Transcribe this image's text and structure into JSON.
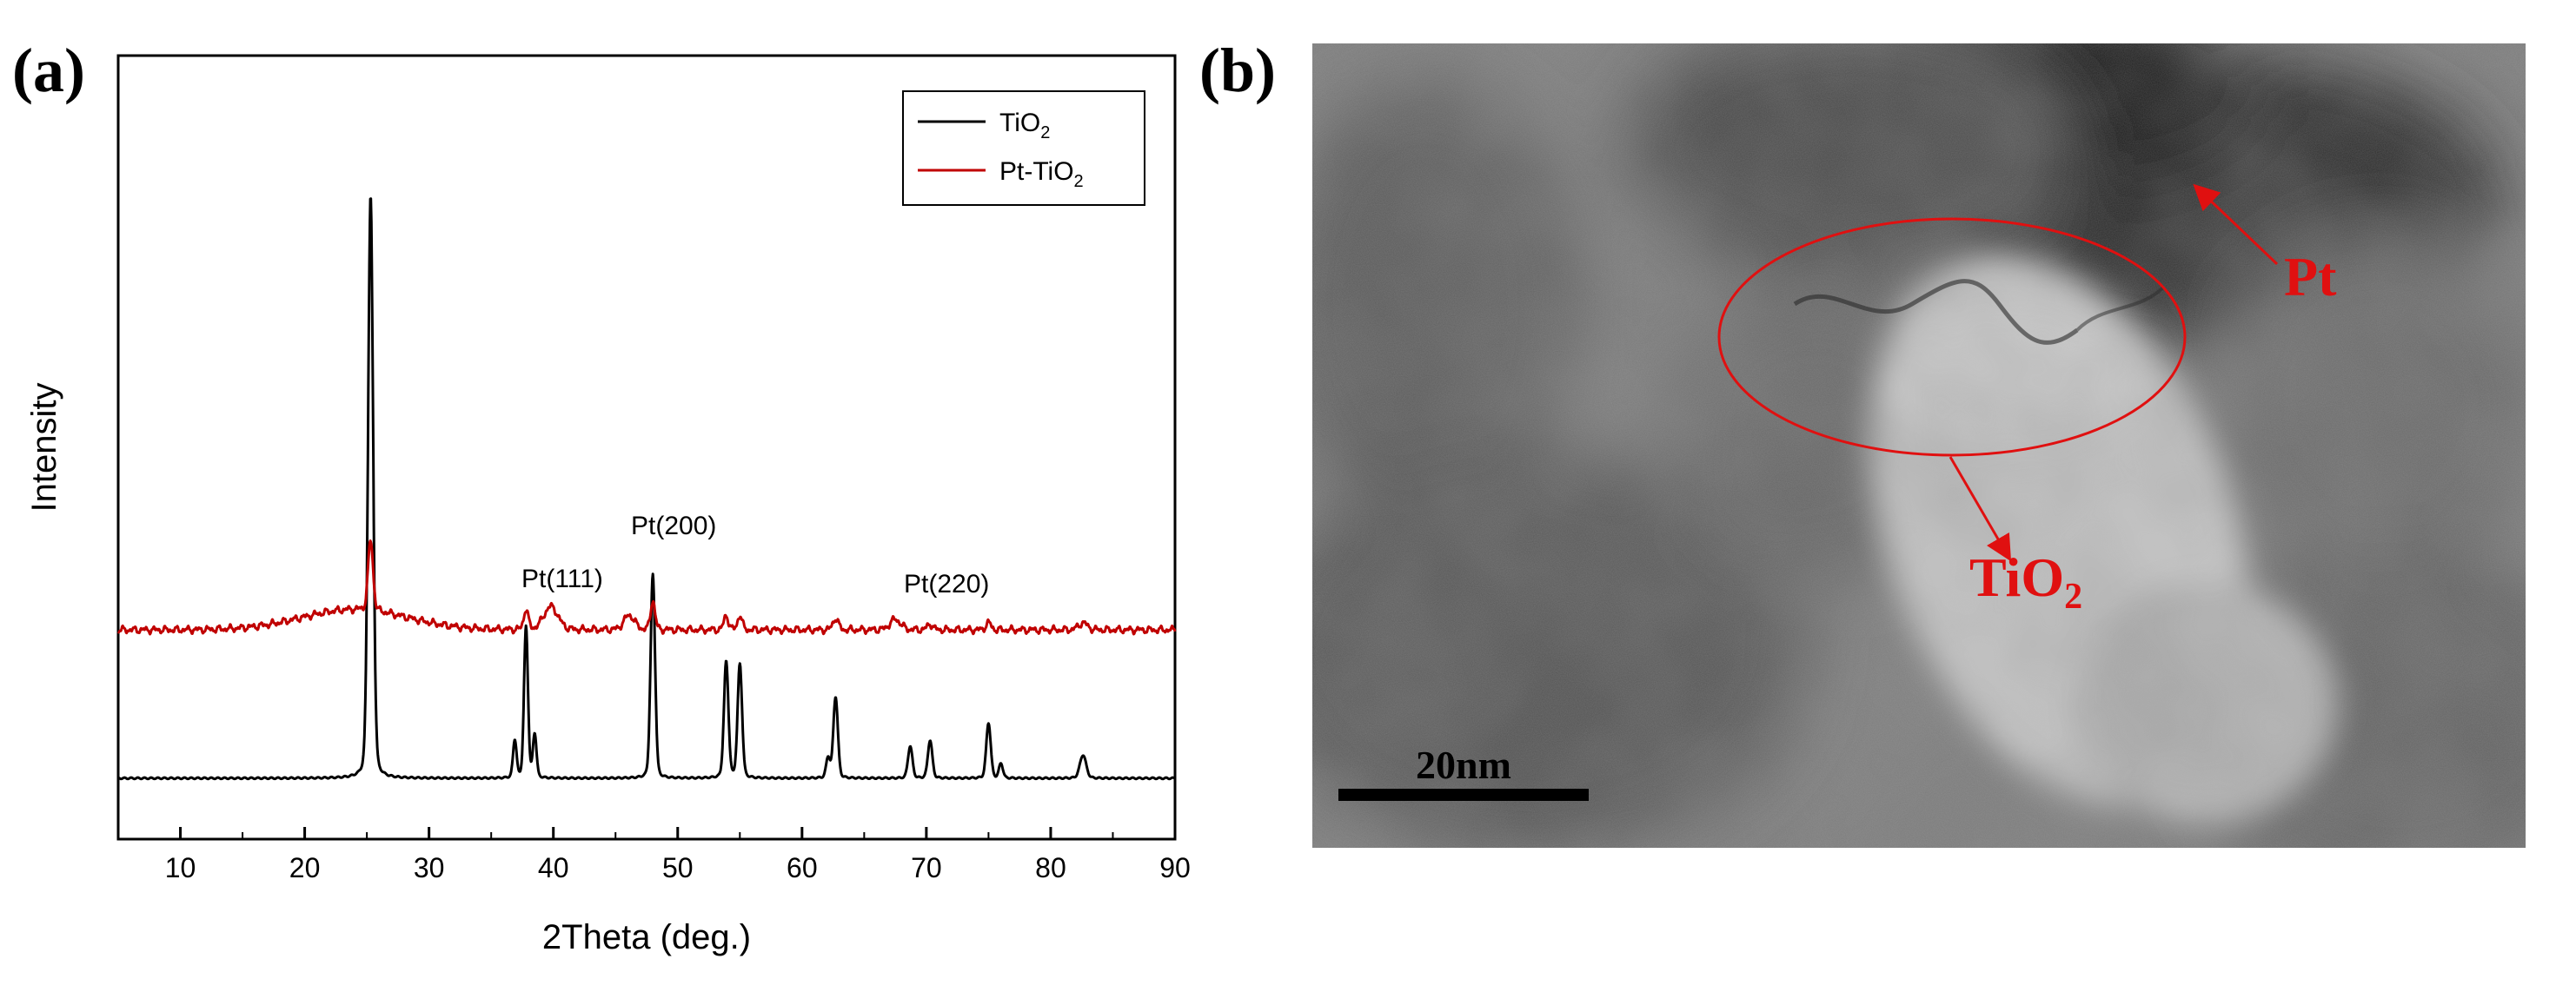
{
  "panel_a_label": "(a)",
  "panel_b_label": "(b)",
  "chart_data": {
    "type": "line",
    "title": "",
    "xlabel": "2Theta (deg.)",
    "ylabel": "Intensity",
    "xlim": [
      5,
      90
    ],
    "ylim": [
      0,
      100
    ],
    "xticks": [
      10,
      20,
      30,
      40,
      50,
      60,
      70,
      80,
      90
    ],
    "grid": false,
    "legend_position": "top-right",
    "annotations": [
      {
        "text": "Pt(111)",
        "x": 40,
        "y": 38
      },
      {
        "text": "Pt(200)",
        "x": 47.8,
        "y": 45
      },
      {
        "text": "Pt(220)",
        "x": 67.5,
        "y": 38
      }
    ],
    "series": [
      {
        "name": "TiO2",
        "legend_main": "TiO",
        "legend_sub": "2",
        "color": "#000000",
        "baseline": 1.5,
        "peaks": [
          {
            "x": 25.3,
            "h": 100,
            "w": 0.28
          },
          {
            "x": 36.9,
            "h": 6.5,
            "w": 0.2
          },
          {
            "x": 37.8,
            "h": 26,
            "w": 0.22
          },
          {
            "x": 38.5,
            "h": 7.5,
            "w": 0.2
          },
          {
            "x": 48.0,
            "h": 35,
            "w": 0.25
          },
          {
            "x": 53.9,
            "h": 20,
            "w": 0.25
          },
          {
            "x": 55.0,
            "h": 19.5,
            "w": 0.25
          },
          {
            "x": 62.1,
            "h": 3.5,
            "w": 0.22
          },
          {
            "x": 62.7,
            "h": 14,
            "w": 0.25
          },
          {
            "x": 68.7,
            "h": 5.5,
            "w": 0.25
          },
          {
            "x": 70.3,
            "h": 6.5,
            "w": 0.25
          },
          {
            "x": 75.0,
            "h": 9.5,
            "w": 0.25
          },
          {
            "x": 76.0,
            "h": 2.5,
            "w": 0.22
          },
          {
            "x": 82.6,
            "h": 4,
            "w": 0.35
          }
        ]
      },
      {
        "name": "Pt-TiO2",
        "legend_main": "Pt-TiO",
        "legend_sub": "2",
        "color": "#c00000",
        "baseline": 27,
        "hump": {
          "x": 24,
          "h": 3.5,
          "w": 6
        },
        "peaks": [
          {
            "x": 25.3,
            "h": 12,
            "w": 0.28
          },
          {
            "x": 37.8,
            "h": 3.5,
            "w": 0.25
          },
          {
            "x": 39.8,
            "h": 4,
            "w": 0.8
          },
          {
            "x": 46.1,
            "h": 2.5,
            "w": 0.6
          },
          {
            "x": 48.0,
            "h": 5,
            "w": 0.25
          },
          {
            "x": 53.9,
            "h": 2.5,
            "w": 0.25
          },
          {
            "x": 55.0,
            "h": 2.5,
            "w": 0.25
          },
          {
            "x": 62.7,
            "h": 2,
            "w": 0.3
          },
          {
            "x": 67.5,
            "h": 1.8,
            "w": 0.6
          },
          {
            "x": 70.3,
            "h": 1,
            "w": 0.3
          },
          {
            "x": 75.0,
            "h": 1.2,
            "w": 0.3
          },
          {
            "x": 82.6,
            "h": 1.2,
            "w": 0.5
          }
        ]
      }
    ]
  },
  "tem": {
    "scale_bar_label": "20nm",
    "pt_label": "Pt",
    "tio2_label_main": "TiO",
    "tio2_label_sub": "2",
    "annotation_color": "#e01010"
  }
}
